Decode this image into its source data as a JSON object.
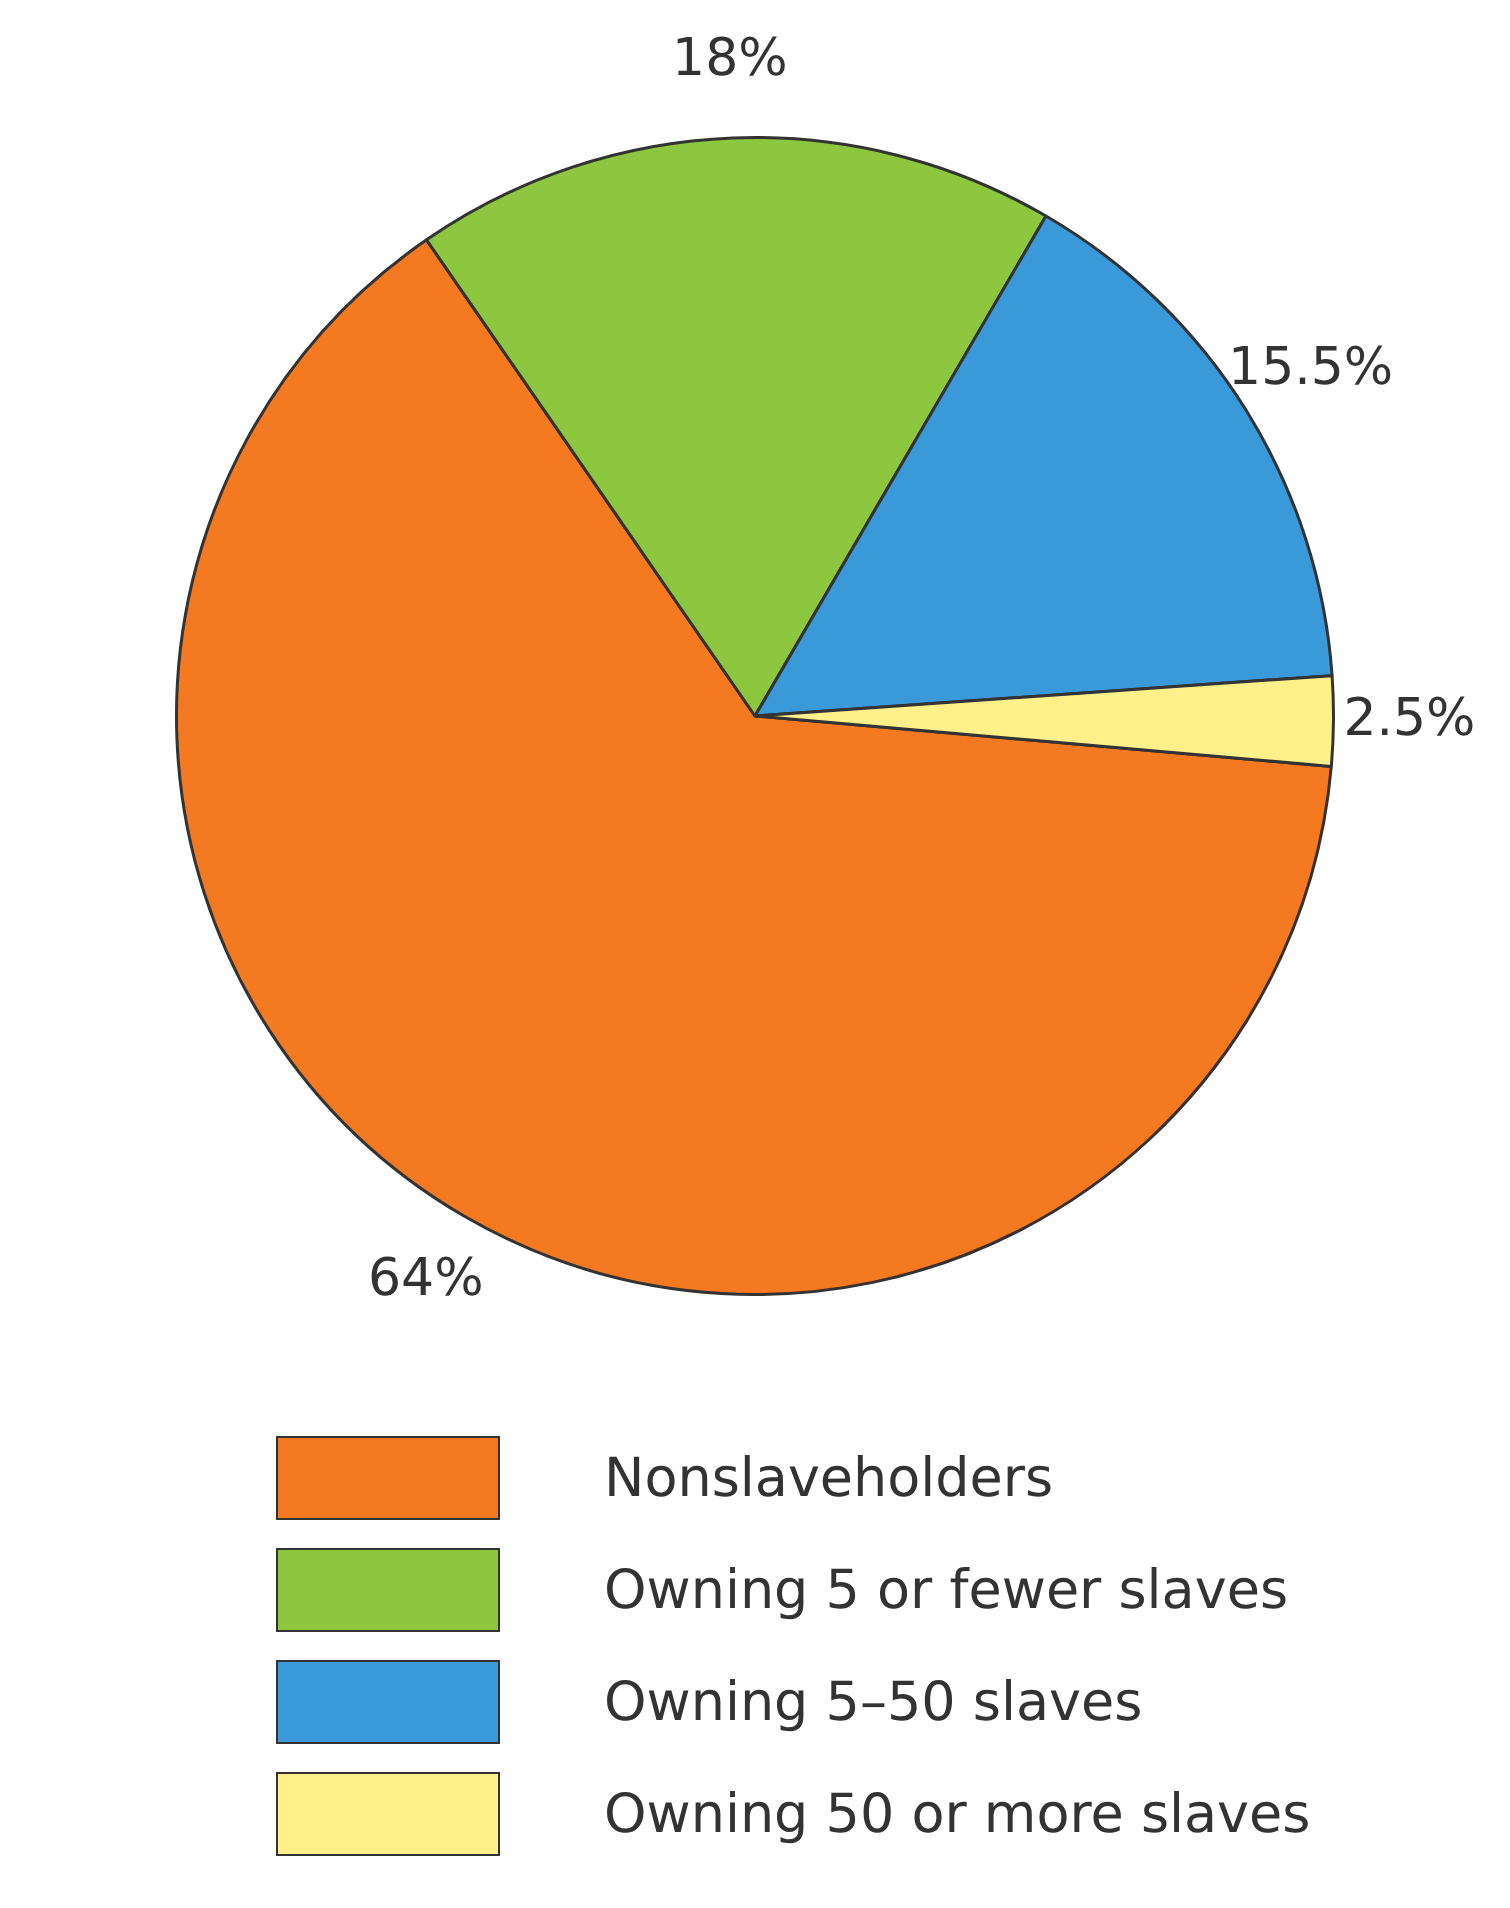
{
  "chart_data": {
    "type": "pie",
    "categories": [
      "Nonslaveholders",
      "Owning 5 or fewer slaves",
      "Owning 5–50 slaves",
      "Owning 50 or more slaves"
    ],
    "values": [
      64,
      18,
      15.5,
      2.5
    ],
    "colors": [
      "#f47920",
      "#8dc63f",
      "#3a9ad9",
      "#fff08a"
    ],
    "value_labels": [
      "64%",
      "18%",
      "15.5%",
      "2.5%"
    ],
    "legend": "bottom"
  }
}
